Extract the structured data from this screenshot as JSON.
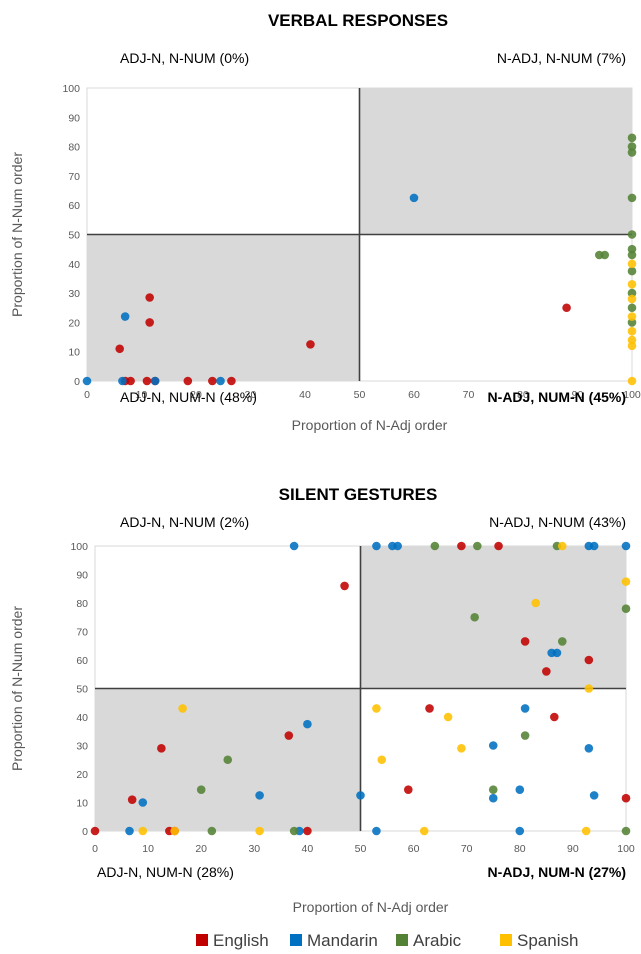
{
  "colors": {
    "English": "#c00000",
    "Mandarin": "#0070c0",
    "Arabic": "#548235",
    "Spanish": "#ffc000",
    "shade": "#d9d9d9",
    "divider": "#404040"
  },
  "legend": [
    "English",
    "Mandarin",
    "Arabic",
    "Spanish"
  ],
  "chart_data": [
    {
      "type": "scatter",
      "title": "VERBAL RESPONSES",
      "xlabel": "Proportion of N-Adj order",
      "ylabel": "Proportion of N-Num order",
      "xlim": [
        0,
        100
      ],
      "ylim": [
        0,
        100
      ],
      "xticks": [
        "0",
        "10",
        "20",
        "30",
        "40",
        "50",
        "60",
        "70",
        "80",
        "90",
        "100"
      ],
      "yticks": [
        "0",
        "10",
        "20",
        "30",
        "40",
        "50",
        "60",
        "70",
        "80",
        "90",
        "100"
      ],
      "quadrant_labels": {
        "top_left": "ADJ-N, N-NUM  (0%)",
        "top_right": "N-ADJ, N-NUM (7%)",
        "bottom_left": "ADJ-N, NUM-N (48%)",
        "bottom_right": "N-ADJ, NUM-N (45%)"
      },
      "shaded_quadrants": [
        "top_right",
        "bottom_left"
      ],
      "series": [
        {
          "name": "English",
          "points": [
            [
              6,
              11
            ],
            [
              7,
              0
            ],
            [
              8,
              0
            ],
            [
              11,
              0
            ],
            [
              11.5,
              28.5
            ],
            [
              11.5,
              20
            ],
            [
              12.5,
              0
            ],
            [
              18.5,
              0
            ],
            [
              23,
              0
            ],
            [
              26.5,
              0
            ],
            [
              41,
              12.5
            ],
            [
              88,
              25
            ]
          ]
        },
        {
          "name": "Mandarin",
          "points": [
            [
              0,
              0
            ],
            [
              6.5,
              0
            ],
            [
              7,
              22
            ],
            [
              12.5,
              0
            ],
            [
              24.5,
              0
            ],
            [
              60,
              62.5
            ]
          ]
        },
        {
          "name": "Arabic",
          "points": [
            [
              94,
              43
            ],
            [
              95,
              43
            ],
            [
              100,
              83
            ],
            [
              100,
              80
            ],
            [
              100,
              78
            ],
            [
              100,
              62.5
            ],
            [
              100,
              50
            ],
            [
              100,
              45
            ],
            [
              100,
              43
            ],
            [
              100,
              37.5
            ],
            [
              100,
              30
            ],
            [
              100,
              25
            ],
            [
              100,
              20
            ]
          ]
        },
        {
          "name": "Spanish",
          "points": [
            [
              100,
              40
            ],
            [
              100,
              33
            ],
            [
              100,
              28
            ],
            [
              100,
              22
            ],
            [
              100,
              17
            ],
            [
              100,
              14
            ],
            [
              100,
              12
            ],
            [
              100,
              0
            ]
          ]
        }
      ]
    },
    {
      "type": "scatter",
      "title": "SILENT GESTURES",
      "xlabel": "Proportion of N-Adj order",
      "ylabel": "Proportion of N-Num order",
      "xlim": [
        0,
        100
      ],
      "ylim": [
        0,
        100
      ],
      "xticks": [
        "0",
        "10",
        "20",
        "30",
        "40",
        "50",
        "60",
        "70",
        "80",
        "90",
        "100"
      ],
      "yticks": [
        "0",
        "10",
        "20",
        "30",
        "40",
        "50",
        "60",
        "70",
        "80",
        "90",
        "100"
      ],
      "quadrant_labels": {
        "top_left": "ADJ-N, N-NUM  (2%)",
        "top_right": "N-ADJ, N-NUM (43%)",
        "bottom_left": "ADJ-N, NUM-N (28%)",
        "bottom_right": "N-ADJ, NUM-N (27%)"
      },
      "shaded_quadrants": [
        "top_right",
        "bottom_left"
      ],
      "series": [
        {
          "name": "English",
          "points": [
            [
              0,
              0
            ],
            [
              7,
              11
            ],
            [
              12.5,
              29
            ],
            [
              14,
              0
            ],
            [
              15,
              0
            ],
            [
              36.5,
              33.5
            ],
            [
              40,
              0
            ],
            [
              47,
              86
            ],
            [
              59,
              14.5
            ],
            [
              63,
              43
            ],
            [
              69,
              100
            ],
            [
              76,
              100
            ],
            [
              81,
              66.5
            ],
            [
              85,
              56
            ],
            [
              86.5,
              40
            ],
            [
              93,
              60
            ],
            [
              100,
              11.5
            ]
          ]
        },
        {
          "name": "Mandarin",
          "points": [
            [
              6.5,
              0
            ],
            [
              9,
              10
            ],
            [
              31,
              12.5
            ],
            [
              37.5,
              100
            ],
            [
              38.5,
              0
            ],
            [
              40,
              37.5
            ],
            [
              50,
              12.5
            ],
            [
              53,
              100
            ],
            [
              53,
              0
            ],
            [
              56,
              100
            ],
            [
              57,
              100
            ],
            [
              75,
              30
            ],
            [
              75,
              11.5
            ],
            [
              80,
              14.5
            ],
            [
              80,
              0
            ],
            [
              81,
              43
            ],
            [
              86,
              62.5
            ],
            [
              87,
              62.5
            ],
            [
              93,
              29
            ],
            [
              93,
              100
            ],
            [
              94,
              12.5
            ],
            [
              94,
              100
            ],
            [
              100,
              100
            ]
          ]
        },
        {
          "name": "Arabic",
          "points": [
            [
              20,
              14.5
            ],
            [
              22,
              0
            ],
            [
              25,
              25
            ],
            [
              37.5,
              0
            ],
            [
              64,
              100
            ],
            [
              71.5,
              75
            ],
            [
              72,
              100
            ],
            [
              75,
              14.5
            ],
            [
              81,
              33.5
            ],
            [
              87,
              100
            ],
            [
              88,
              66.5
            ],
            [
              100,
              78
            ],
            [
              100,
              0
            ]
          ]
        },
        {
          "name": "Spanish",
          "points": [
            [
              9,
              0
            ],
            [
              15,
              0
            ],
            [
              16.5,
              43
            ],
            [
              31,
              0
            ],
            [
              53,
              43
            ],
            [
              54,
              25
            ],
            [
              62,
              0
            ],
            [
              66.5,
              40
            ],
            [
              69,
              29
            ],
            [
              83,
              80
            ],
            [
              88,
              100
            ],
            [
              92.5,
              0
            ],
            [
              93,
              50
            ],
            [
              100,
              87.5
            ]
          ]
        }
      ]
    }
  ]
}
